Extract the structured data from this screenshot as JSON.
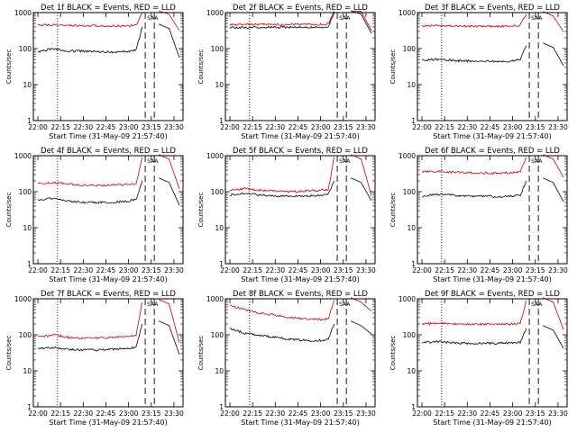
{
  "chart_data": [
    {
      "type": "line",
      "title": "Det 1f BLACK = Events, RED = LLD",
      "xlabel": "Start Time (31-May-09 21:57:40)",
      "ylabel": "Counts/sec",
      "x_ticks": [
        "22:00",
        "22:15",
        "22:30",
        "22:45",
        "23:00",
        "23:15",
        "23:30"
      ],
      "y_ticks": [
        "1",
        "10",
        "100",
        "1000"
      ],
      "ylim": [
        1,
        1000
      ],
      "y_scale": "log",
      "markers": [
        "22:13",
        "23:11",
        "23:17"
      ],
      "marker_label": "SAA",
      "series": [
        {
          "name": "Events",
          "color": "#000000",
          "x": [
            "22:00",
            "22:10",
            "22:20",
            "22:30",
            "22:40",
            "22:50",
            "23:00",
            "23:05",
            "23:09"
          ],
          "y": [
            80,
            100,
            85,
            85,
            82,
            80,
            85,
            90,
            400
          ]
        },
        {
          "name": "LLD",
          "color": "#cc0000",
          "x": [
            "22:00",
            "22:10",
            "22:20",
            "22:30",
            "22:40",
            "22:50",
            "23:00",
            "23:05",
            "23:09"
          ],
          "y": [
            450,
            460,
            440,
            430,
            430,
            430,
            430,
            440,
            1000
          ]
        }
      ]
    },
    {
      "type": "line",
      "title": "Det 2f BLACK = Events, RED = LLD",
      "xlabel": "Start Time (31-May-09 21:57:40)",
      "ylabel": "Counts/sec",
      "x_ticks": [
        "22:00",
        "22:15",
        "22:30",
        "22:45",
        "23:00",
        "23:15",
        "23:30"
      ],
      "y_ticks": [
        "1",
        "10",
        "100",
        "1000"
      ],
      "ylim": [
        1,
        1000
      ],
      "y_scale": "log",
      "markers": [
        "22:13",
        "23:11",
        "23:17"
      ],
      "marker_label": "SAA",
      "series": [
        {
          "name": "Events",
          "color": "#000000",
          "x": [
            "22:00",
            "22:10",
            "22:20",
            "22:30",
            "22:40",
            "22:50",
            "23:00",
            "23:05",
            "23:09"
          ],
          "y": [
            380,
            380,
            390,
            390,
            390,
            390,
            390,
            400,
            1000
          ]
        },
        {
          "name": "LLD",
          "color": "#cc0000",
          "x": [
            "22:00",
            "22:10",
            "22:20",
            "22:30",
            "22:40",
            "22:50",
            "23:00",
            "23:05",
            "23:09"
          ],
          "y": [
            460,
            470,
            470,
            470,
            460,
            470,
            470,
            480,
            1200
          ]
        }
      ]
    },
    {
      "type": "line",
      "title": "Det 3f BLACK = Events, RED = LLD",
      "xlabel": "Start Time (31-May-09 21:57:40)",
      "ylabel": "Counts/sec",
      "x_ticks": [
        "22:00",
        "22:15",
        "22:30",
        "22:45",
        "23:00",
        "23:15",
        "23:30"
      ],
      "y_ticks": [
        "1",
        "10",
        "100",
        "1000"
      ],
      "ylim": [
        1,
        1000
      ],
      "y_scale": "log",
      "markers": [
        "22:13",
        "23:11",
        "23:17"
      ],
      "marker_label": "SAA",
      "series": [
        {
          "name": "Events",
          "color": "#000000",
          "x": [
            "22:00",
            "22:10",
            "22:20",
            "22:30",
            "22:40",
            "22:50",
            "23:00",
            "23:05",
            "23:09"
          ],
          "y": [
            48,
            50,
            47,
            45,
            45,
            43,
            45,
            50,
            120
          ]
        },
        {
          "name": "LLD",
          "color": "#cc0000",
          "x": [
            "22:00",
            "22:10",
            "22:20",
            "22:30",
            "22:40",
            "22:50",
            "23:00",
            "23:05",
            "23:09"
          ],
          "y": [
            420,
            440,
            420,
            420,
            410,
            410,
            430,
            450,
            900
          ]
        }
      ]
    },
    {
      "type": "line",
      "title": "Det 4f BLACK = Events, RED = LLD",
      "xlabel": "Start Time (31-May-09 21:57:40)",
      "ylabel": "Counts/sec",
      "x_ticks": [
        "22:00",
        "22:15",
        "22:30",
        "22:45",
        "23:00",
        "23:15",
        "23:30"
      ],
      "y_ticks": [
        "1",
        "10",
        "100",
        "1000"
      ],
      "ylim": [
        1,
        1000
      ],
      "y_scale": "log",
      "markers": [
        "22:13",
        "23:11",
        "23:17"
      ],
      "marker_label": "SAA",
      "series": [
        {
          "name": "Events",
          "color": "#000000",
          "x": [
            "22:00",
            "22:10",
            "22:20",
            "22:30",
            "22:40",
            "22:50",
            "23:00",
            "23:05",
            "23:09"
          ],
          "y": [
            60,
            65,
            55,
            50,
            50,
            50,
            55,
            60,
            200
          ]
        },
        {
          "name": "LLD",
          "color": "#cc0000",
          "x": [
            "22:00",
            "22:10",
            "22:20",
            "22:30",
            "22:40",
            "22:50",
            "23:00",
            "23:05",
            "23:09"
          ],
          "y": [
            170,
            180,
            165,
            150,
            150,
            155,
            160,
            170,
            900
          ]
        }
      ]
    },
    {
      "type": "line",
      "title": "Det 5f BLACK = Events, RED = LLD",
      "xlabel": "Start Time (31-May-09 21:57:40)",
      "ylabel": "Counts/sec",
      "x_ticks": [
        "22:00",
        "22:15",
        "22:30",
        "22:45",
        "23:00",
        "23:15",
        "23:30"
      ],
      "y_ticks": [
        "1",
        "10",
        "100",
        "1000"
      ],
      "ylim": [
        1,
        1000
      ],
      "y_scale": "log",
      "markers": [
        "22:13",
        "23:11",
        "23:17"
      ],
      "marker_label": "SAA",
      "series": [
        {
          "name": "Events",
          "color": "#000000",
          "x": [
            "22:00",
            "22:10",
            "22:20",
            "22:30",
            "22:40",
            "22:50",
            "23:00",
            "23:05",
            "23:09"
          ],
          "y": [
            80,
            90,
            80,
            75,
            75,
            75,
            80,
            85,
            200
          ]
        },
        {
          "name": "LLD",
          "color": "#cc0000",
          "x": [
            "22:00",
            "22:10",
            "22:20",
            "22:30",
            "22:40",
            "22:50",
            "23:00",
            "23:05",
            "23:09"
          ],
          "y": [
            110,
            120,
            110,
            105,
            100,
            105,
            110,
            115,
            900
          ]
        }
      ]
    },
    {
      "type": "line",
      "title": "Det 6f BLACK = Events, RED = LLD",
      "xlabel": "Start Time (31-May-09 21:57:40)",
      "ylabel": "Counts/sec",
      "x_ticks": [
        "22:00",
        "22:15",
        "22:30",
        "22:45",
        "23:00",
        "23:15",
        "23:30"
      ],
      "y_ticks": [
        "1",
        "10",
        "100",
        "1000"
      ],
      "ylim": [
        1,
        1000
      ],
      "y_scale": "log",
      "markers": [
        "22:13",
        "23:11",
        "23:17"
      ],
      "marker_label": "SAA",
      "series": [
        {
          "name": "Events",
          "color": "#000000",
          "x": [
            "22:00",
            "22:10",
            "22:20",
            "22:30",
            "22:40",
            "22:50",
            "23:00",
            "23:05",
            "23:09"
          ],
          "y": [
            75,
            85,
            80,
            75,
            75,
            72,
            75,
            80,
            200
          ]
        },
        {
          "name": "LLD",
          "color": "#cc0000",
          "x": [
            "22:00",
            "22:10",
            "22:20",
            "22:30",
            "22:40",
            "22:50",
            "23:00",
            "23:05",
            "23:09"
          ],
          "y": [
            360,
            370,
            350,
            340,
            330,
            330,
            340,
            350,
            900
          ]
        }
      ]
    },
    {
      "type": "line",
      "title": "Det 7f BLACK = Events, RED = LLD",
      "xlabel": "Start Time (31-May-09 21:57:40)",
      "ylabel": "Counts/sec",
      "x_ticks": [
        "22:00",
        "22:15",
        "22:30",
        "22:45",
        "23:00",
        "23:15",
        "23:30"
      ],
      "y_ticks": [
        "1",
        "10",
        "100",
        "1000"
      ],
      "ylim": [
        1,
        1000
      ],
      "y_scale": "log",
      "markers": [
        "22:13",
        "23:11",
        "23:17"
      ],
      "marker_label": "SAA",
      "series": [
        {
          "name": "Events",
          "color": "#000000",
          "x": [
            "22:00",
            "22:10",
            "22:20",
            "22:30",
            "22:40",
            "22:50",
            "23:00",
            "23:05",
            "23:09"
          ],
          "y": [
            40,
            45,
            40,
            38,
            38,
            40,
            42,
            45,
            200
          ]
        },
        {
          "name": "LLD",
          "color": "#cc0000",
          "x": [
            "22:00",
            "22:10",
            "22:20",
            "22:30",
            "22:40",
            "22:50",
            "23:00",
            "23:05",
            "23:09"
          ],
          "y": [
            85,
            100,
            85,
            80,
            80,
            85,
            90,
            95,
            800
          ]
        }
      ]
    },
    {
      "type": "line",
      "title": "Det 8f BLACK = Events, RED = LLD",
      "xlabel": "Start Time (31-May-09 21:57:40)",
      "ylabel": "Counts/sec",
      "x_ticks": [
        "22:00",
        "22:15",
        "22:30",
        "22:45",
        "23:00",
        "23:15",
        "23:30"
      ],
      "y_ticks": [
        "1",
        "10",
        "100",
        "1000"
      ],
      "ylim": [
        1,
        1000
      ],
      "y_scale": "log",
      "markers": [
        "22:13",
        "23:11",
        "23:17"
      ],
      "marker_label": "SAA",
      "series": [
        {
          "name": "Events",
          "color": "#000000",
          "x": [
            "22:00",
            "22:10",
            "22:20",
            "22:30",
            "22:40",
            "22:50",
            "23:00",
            "23:05",
            "23:09"
          ],
          "y": [
            150,
            110,
            95,
            85,
            75,
            70,
            70,
            75,
            200
          ]
        },
        {
          "name": "LLD",
          "color": "#cc0000",
          "x": [
            "22:00",
            "22:10",
            "22:20",
            "22:30",
            "22:40",
            "22:50",
            "23:00",
            "23:05",
            "23:09"
          ],
          "y": [
            650,
            500,
            400,
            350,
            300,
            280,
            270,
            280,
            900
          ]
        }
      ]
    },
    {
      "type": "line",
      "title": "Det 9f BLACK = Events, RED = LLD",
      "xlabel": "Start Time (31-May-09 21:57:40)",
      "ylabel": "Counts/sec",
      "x_ticks": [
        "22:00",
        "22:15",
        "22:30",
        "22:45",
        "23:00",
        "23:15",
        "23:30"
      ],
      "y_ticks": [
        "1",
        "10",
        "100",
        "1000"
      ],
      "ylim": [
        1,
        1000
      ],
      "y_scale": "log",
      "markers": [
        "22:13",
        "23:11",
        "23:17"
      ],
      "marker_label": "SAA",
      "series": [
        {
          "name": "Events",
          "color": "#000000",
          "x": [
            "22:00",
            "22:10",
            "22:20",
            "22:30",
            "22:40",
            "22:50",
            "23:00",
            "23:05",
            "23:09"
          ],
          "y": [
            60,
            65,
            60,
            58,
            58,
            58,
            60,
            62,
            150
          ]
        },
        {
          "name": "LLD",
          "color": "#cc0000",
          "x": [
            "22:00",
            "22:10",
            "22:20",
            "22:30",
            "22:40",
            "22:50",
            "23:00",
            "23:05",
            "23:09"
          ],
          "y": [
            200,
            210,
            200,
            195,
            195,
            195,
            200,
            205,
            900
          ]
        }
      ]
    }
  ]
}
